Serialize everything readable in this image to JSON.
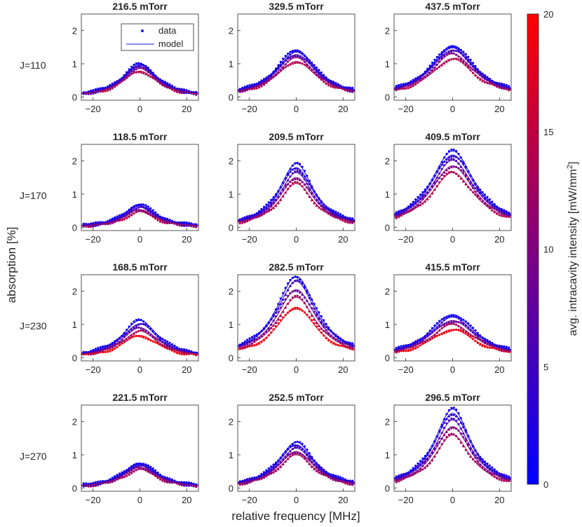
{
  "figure": {
    "xlabel": "relative frequency [MHz]",
    "ylabel": "absorption [%]",
    "colorbar": {
      "label": "avg. intracavity intensity [mW/mm",
      "label_sup": "2",
      "label_end": "]",
      "range": [
        0,
        20
      ],
      "ticks": [
        "0",
        "5",
        "10",
        "15",
        "20"
      ],
      "color_low": "#0000ff",
      "color_high": "#ff0000"
    },
    "legend": {
      "data_label": "data",
      "model_label": "model"
    },
    "row_labels": [
      "J=110",
      "J=170",
      "J=230",
      "J=270"
    ]
  },
  "chart_data": [
    {
      "type": "scatter",
      "title": "216.5 mTorr",
      "row": "J=110",
      "xlim": [
        -25,
        25
      ],
      "ylim": [
        -0.1,
        2.5
      ],
      "xticks": [
        "-20",
        "0",
        "20"
      ],
      "yticks": [
        "0",
        "1",
        "2"
      ],
      "width_mhz": 9.0,
      "series": [
        {
          "intensity": 1,
          "peak": 1.0
        },
        {
          "intensity": 3,
          "peak": 0.96
        },
        {
          "intensity": 6,
          "peak": 0.92
        },
        {
          "intensity": 10,
          "peak": 0.86
        },
        {
          "intensity": 14,
          "peak": 0.78
        }
      ]
    },
    {
      "type": "scatter",
      "title": "329.5 mTorr",
      "row": "J=110",
      "xlim": [
        -25,
        25
      ],
      "ylim": [
        -0.1,
        2.5
      ],
      "xticks": [
        "-20",
        "0",
        "20"
      ],
      "yticks": [
        "0",
        "1",
        "2"
      ],
      "width_mhz": 10.5,
      "series": [
        {
          "intensity": 1,
          "peak": 1.42
        },
        {
          "intensity": 3,
          "peak": 1.35
        },
        {
          "intensity": 6,
          "peak": 1.28
        },
        {
          "intensity": 10,
          "peak": 1.18
        },
        {
          "intensity": 14,
          "peak": 1.07
        }
      ]
    },
    {
      "type": "scatter",
      "title": "437.5 mTorr",
      "row": "J=110",
      "xlim": [
        -25,
        25
      ],
      "ylim": [
        -0.1,
        2.5
      ],
      "xticks": [
        "-20",
        "0",
        "20"
      ],
      "yticks": [
        "0",
        "1",
        "2"
      ],
      "width_mhz": 11.5,
      "series": [
        {
          "intensity": 1,
          "peak": 1.55
        },
        {
          "intensity": 3,
          "peak": 1.48
        },
        {
          "intensity": 6,
          "peak": 1.42
        },
        {
          "intensity": 10,
          "peak": 1.3
        },
        {
          "intensity": 14,
          "peak": 1.15
        }
      ]
    },
    {
      "type": "scatter",
      "title": "118.5 mTorr",
      "row": "J=170",
      "xlim": [
        -25,
        25
      ],
      "ylim": [
        -0.1,
        2.5
      ],
      "xticks": [
        "-20",
        "0",
        "20"
      ],
      "yticks": [
        "0",
        "1",
        "2"
      ],
      "width_mhz": 8.0,
      "series": [
        {
          "intensity": 1,
          "peak": 0.7
        },
        {
          "intensity": 3,
          "peak": 0.65
        },
        {
          "intensity": 6,
          "peak": 0.6
        },
        {
          "intensity": 10,
          "peak": 0.53
        },
        {
          "intensity": 14,
          "peak": 0.47
        }
      ]
    },
    {
      "type": "scatter",
      "title": "209.5 mTorr",
      "row": "J=170",
      "xlim": [
        -25,
        25
      ],
      "ylim": [
        -0.1,
        2.5
      ],
      "xticks": [
        "-20",
        "0",
        "20"
      ],
      "yticks": [
        "0",
        "1",
        "2"
      ],
      "width_mhz": 9.0,
      "series": [
        {
          "intensity": 1,
          "peak": 1.92
        },
        {
          "intensity": 3,
          "peak": 1.8
        },
        {
          "intensity": 6,
          "peak": 1.65
        },
        {
          "intensity": 10,
          "peak": 1.5
        },
        {
          "intensity": 14,
          "peak": 1.32
        }
      ]
    },
    {
      "type": "scatter",
      "title": "409.5 mTorr",
      "row": "J=170",
      "xlim": [
        -25,
        25
      ],
      "ylim": [
        -0.1,
        2.5
      ],
      "xticks": [
        "-20",
        "0",
        "20"
      ],
      "yticks": [
        "0",
        "1",
        "2"
      ],
      "width_mhz": 11.5,
      "series": [
        {
          "intensity": 1,
          "peak": 2.3
        },
        {
          "intensity": 3,
          "peak": 2.18
        },
        {
          "intensity": 6,
          "peak": 2.02
        },
        {
          "intensity": 10,
          "peak": 1.85
        },
        {
          "intensity": 14,
          "peak": 1.65
        }
      ]
    },
    {
      "type": "scatter",
      "title": "168.5 mTorr",
      "row": "J=230",
      "xlim": [
        -25,
        25
      ],
      "ylim": [
        -0.1,
        2.5
      ],
      "xticks": [
        "-20",
        "0",
        "20"
      ],
      "yticks": [
        "0",
        "1",
        "2"
      ],
      "width_mhz": 9.5,
      "series": [
        {
          "intensity": 1,
          "peak": 1.12
        },
        {
          "intensity": 4,
          "peak": 1.02
        },
        {
          "intensity": 8,
          "peak": 0.9
        },
        {
          "intensity": 13,
          "peak": 0.8
        },
        {
          "intensity": 19,
          "peak": 0.67
        }
      ]
    },
    {
      "type": "scatter",
      "title": "282.5 mTorr",
      "row": "J=230",
      "xlim": [
        -25,
        25
      ],
      "ylim": [
        -0.1,
        2.5
      ],
      "xticks": [
        "-20",
        "0",
        "20"
      ],
      "yticks": [
        "0",
        "1",
        "2"
      ],
      "width_mhz": 10.5,
      "series": [
        {
          "intensity": 1,
          "peak": 2.45
        },
        {
          "intensity": 4,
          "peak": 2.3
        },
        {
          "intensity": 8,
          "peak": 2.05
        },
        {
          "intensity": 13,
          "peak": 1.82
        },
        {
          "intensity": 19,
          "peak": 1.52
        }
      ]
    },
    {
      "type": "scatter",
      "title": "415.5 mTorr",
      "row": "J=230",
      "xlim": [
        -25,
        25
      ],
      "ylim": [
        -0.1,
        2.5
      ],
      "xticks": [
        "-20",
        "0",
        "20"
      ],
      "yticks": [
        "0",
        "1",
        "2"
      ],
      "width_mhz": 12.0,
      "series": [
        {
          "intensity": 1,
          "peak": 1.3
        },
        {
          "intensity": 4,
          "peak": 1.22
        },
        {
          "intensity": 8,
          "peak": 1.12
        },
        {
          "intensity": 13,
          "peak": 1.0
        },
        {
          "intensity": 19,
          "peak": 0.85
        }
      ]
    },
    {
      "type": "scatter",
      "title": "221.5 mTorr",
      "row": "J=270",
      "xlim": [
        -25,
        25
      ],
      "ylim": [
        -0.1,
        2.5
      ],
      "xticks": [
        "-20",
        "0",
        "20"
      ],
      "yticks": [
        "0",
        "1",
        "2"
      ],
      "width_mhz": 9.0,
      "series": [
        {
          "intensity": 1,
          "peak": 0.75
        },
        {
          "intensity": 3,
          "peak": 0.71
        },
        {
          "intensity": 6,
          "peak": 0.67
        },
        {
          "intensity": 10,
          "peak": 0.62
        },
        {
          "intensity": 13,
          "peak": 0.56
        }
      ]
    },
    {
      "type": "scatter",
      "title": "252.5 mTorr",
      "row": "J=270",
      "xlim": [
        -25,
        25
      ],
      "ylim": [
        -0.1,
        2.5
      ],
      "xticks": [
        "-20",
        "0",
        "20"
      ],
      "yticks": [
        "0",
        "1",
        "2"
      ],
      "width_mhz": 9.5,
      "series": [
        {
          "intensity": 1,
          "peak": 1.38
        },
        {
          "intensity": 3,
          "peak": 1.3
        },
        {
          "intensity": 6,
          "peak": 1.2
        },
        {
          "intensity": 10,
          "peak": 1.1
        },
        {
          "intensity": 13,
          "peak": 1.0
        }
      ]
    },
    {
      "type": "scatter",
      "title": "296.5 mTorr",
      "row": "J=270",
      "xlim": [
        -25,
        25
      ],
      "ylim": [
        -0.1,
        2.5
      ],
      "xticks": [
        "-20",
        "0",
        "20"
      ],
      "yticks": [
        "0",
        "1",
        "2"
      ],
      "width_mhz": 9.5,
      "series": [
        {
          "intensity": 1,
          "peak": 2.38
        },
        {
          "intensity": 3,
          "peak": 2.25
        },
        {
          "intensity": 6,
          "peak": 2.05
        },
        {
          "intensity": 10,
          "peak": 1.85
        },
        {
          "intensity": 13,
          "peak": 1.6
        }
      ]
    }
  ]
}
